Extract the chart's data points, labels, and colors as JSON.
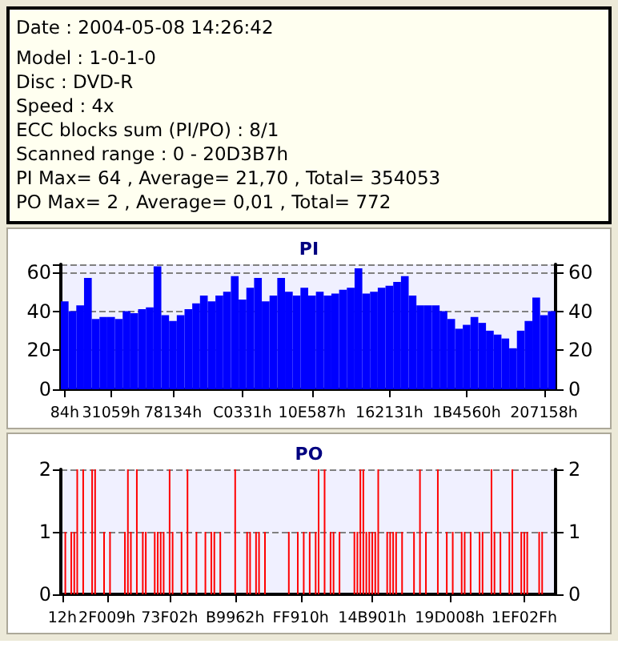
{
  "chart_data": [
    {
      "type": "other",
      "annotations": [
        "Date : 2004-05-08 14:26:42",
        "Model : 1-0-1-0",
        "Disc : DVD-R",
        "Speed : 4x",
        "ECC blocks sum (PI/PO) : 8/1",
        "Scanned range : 0 - 20D3B7h",
        "PI Max= 64 , Average= 21,70 , Total= 354053",
        "PO Max= 2 , Average= 0,01 , Total= 772"
      ]
    },
    {
      "type": "bar",
      "title": "PI",
      "color": "#0000ff",
      "grid": "y",
      "categories": [
        "84h",
        null,
        null,
        null,
        null,
        null,
        "31059h",
        null,
        null,
        null,
        null,
        null,
        null,
        null,
        "78134h",
        null,
        null,
        null,
        null,
        null,
        null,
        null,
        null,
        "C0331h",
        null,
        null,
        null,
        null,
        null,
        null,
        null,
        null,
        "10E587h",
        null,
        null,
        null,
        null,
        null,
        null,
        null,
        null,
        null,
        "162131h",
        null,
        null,
        null,
        null,
        null,
        null,
        null,
        null,
        null,
        "1B4560h",
        null,
        null,
        null,
        null,
        null,
        null,
        null,
        null,
        null,
        "207158h",
        null
      ],
      "values": [
        45,
        40,
        43,
        57,
        36,
        37,
        37,
        36,
        40,
        39,
        41,
        42,
        63,
        38,
        35,
        38,
        41,
        44,
        48,
        45,
        48,
        50,
        58,
        46,
        52,
        57,
        45,
        48,
        57,
        50,
        48,
        52,
        48,
        50,
        48,
        49,
        51,
        52,
        62,
        49,
        50,
        52,
        53,
        55,
        58,
        48,
        43,
        43,
        43,
        40,
        36,
        31,
        33,
        37,
        34,
        30,
        28,
        26,
        21,
        30,
        35,
        47,
        38,
        40
      ],
      "ylim": [
        0,
        64
      ],
      "yticks": [
        0,
        20,
        40,
        60
      ],
      "y2lim": [
        0,
        64
      ],
      "y2ticks": [
        0,
        20,
        40,
        60
      ]
    },
    {
      "type": "bar",
      "title": "PO",
      "color": "#ff0000",
      "grid": "y",
      "categories": [
        "12h",
        null,
        null,
        null,
        null,
        null,
        null,
        null,
        null,
        null,
        null,
        null,
        null,
        null,
        null,
        "2F009h",
        null,
        null,
        null,
        null,
        null,
        null,
        null,
        null,
        null,
        null,
        null,
        null,
        null,
        null,
        null,
        null,
        null,
        null,
        null,
        null,
        "73F02h",
        null,
        null,
        null,
        null,
        null,
        null,
        null,
        null,
        null,
        null,
        null,
        null,
        null,
        null,
        null,
        null,
        null,
        null,
        null,
        null,
        null,
        "B9962h",
        null,
        null,
        null,
        null,
        null,
        null,
        null,
        null,
        null,
        null,
        null,
        null,
        null,
        null,
        null,
        null,
        null,
        null,
        null,
        null,
        null,
        "FF910h",
        null,
        null,
        null,
        null,
        null,
        null,
        null,
        null,
        null,
        null,
        null,
        null,
        null,
        null,
        null,
        null,
        null,
        null,
        null,
        null,
        null,
        null,
        null,
        "14B901h",
        null,
        null,
        null,
        null,
        null,
        null,
        null,
        null,
        null,
        null,
        null,
        null,
        null,
        null,
        null,
        null,
        null,
        null,
        null,
        null,
        null,
        null,
        null,
        null,
        null,
        "19D008h",
        null,
        null,
        null,
        null,
        null,
        null,
        null,
        null,
        null,
        null,
        null,
        null,
        null,
        null,
        null,
        null,
        null,
        null,
        null,
        null,
        null,
        null,
        null,
        null,
        "1EF02Fh",
        null,
        null,
        null,
        null,
        null,
        null,
        null,
        null,
        null,
        null
      ],
      "values": [
        0,
        1,
        0,
        1,
        1,
        2,
        0,
        2,
        0,
        0,
        2,
        2,
        0,
        0,
        1,
        0,
        1,
        0,
        0,
        0,
        0,
        1,
        2,
        1,
        0,
        2,
        0,
        1,
        1,
        0,
        0,
        1,
        1,
        1,
        1,
        0,
        2,
        1,
        0,
        0,
        1,
        0,
        2,
        0,
        0,
        1,
        0,
        0,
        1,
        0,
        1,
        1,
        0,
        1,
        0,
        0,
        0,
        0,
        2,
        0,
        0,
        0,
        1,
        1,
        0,
        1,
        1,
        0,
        1,
        0,
        0,
        0,
        0,
        0,
        0,
        0,
        1,
        0,
        0,
        1,
        0,
        1,
        0,
        1,
        0,
        1,
        2,
        0,
        2,
        0,
        1,
        1,
        0,
        1,
        0,
        0,
        0,
        0,
        1,
        1,
        2,
        2,
        1,
        1,
        1,
        1,
        2,
        0,
        0,
        1,
        1,
        1,
        1,
        0,
        1,
        0,
        0,
        0,
        1,
        0,
        2,
        0,
        1,
        0,
        0,
        0,
        2,
        0,
        0,
        1,
        0,
        1,
        0,
        0,
        1,
        1,
        0,
        1,
        0,
        0,
        1,
        1,
        0,
        0,
        2,
        1,
        0,
        1,
        0,
        0,
        1,
        2,
        0,
        0,
        1,
        1,
        1,
        0,
        0,
        0,
        1,
        1,
        0,
        0,
        0,
        0
      ],
      "ylim": [
        0,
        2
      ],
      "yticks": [
        0,
        1,
        2
      ],
      "y2lim": [
        0,
        2
      ],
      "y2ticks": [
        0,
        1,
        2
      ]
    }
  ]
}
